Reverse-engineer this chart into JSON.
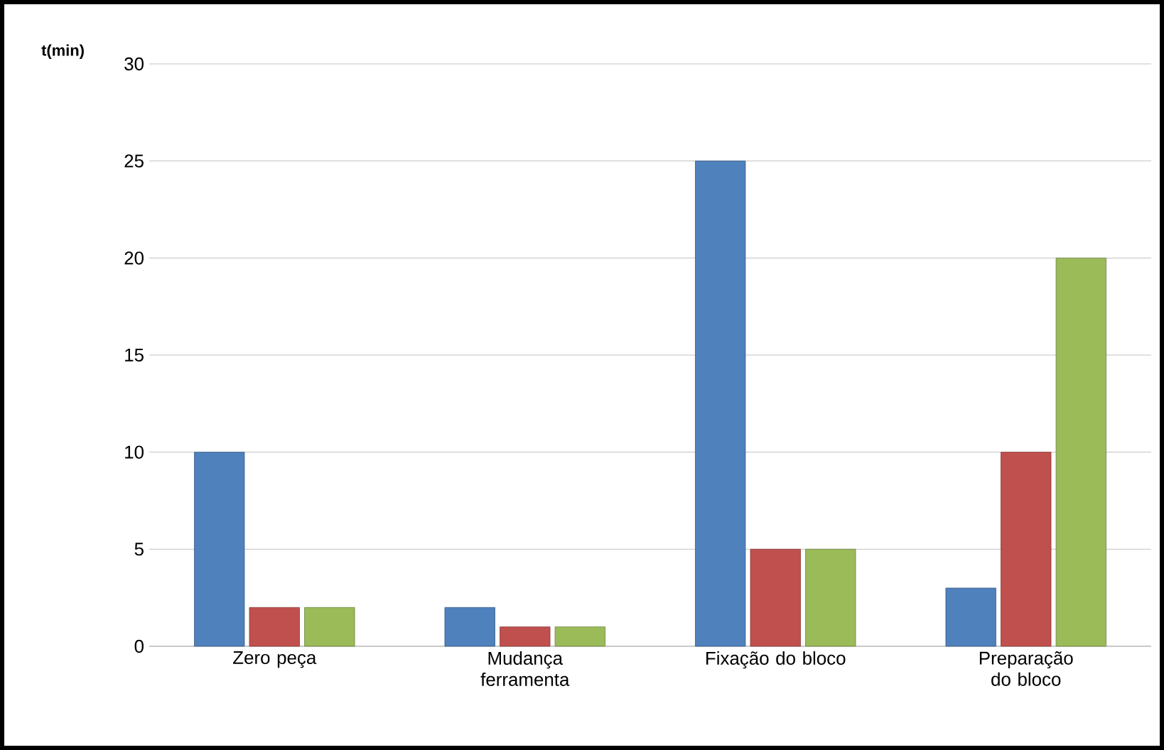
{
  "chart_data": {
    "type": "bar",
    "ylabel": "t(min)",
    "categories": [
      "Zero peça",
      "Mudança ferramenta",
      "Fixação do bloco",
      "Preparação do bloco"
    ],
    "series": [
      {
        "color": "#4f81bd",
        "values": [
          10,
          2,
          25,
          3
        ]
      },
      {
        "color": "#c0504d",
        "values": [
          2,
          1,
          5,
          10
        ]
      },
      {
        "color": "#9bbb59",
        "values": [
          2,
          1,
          5,
          20
        ]
      }
    ],
    "ylim": [
      0,
      30
    ],
    "yticks": [
      0,
      5,
      10,
      15,
      20,
      25,
      30
    ],
    "grid": "y"
  }
}
